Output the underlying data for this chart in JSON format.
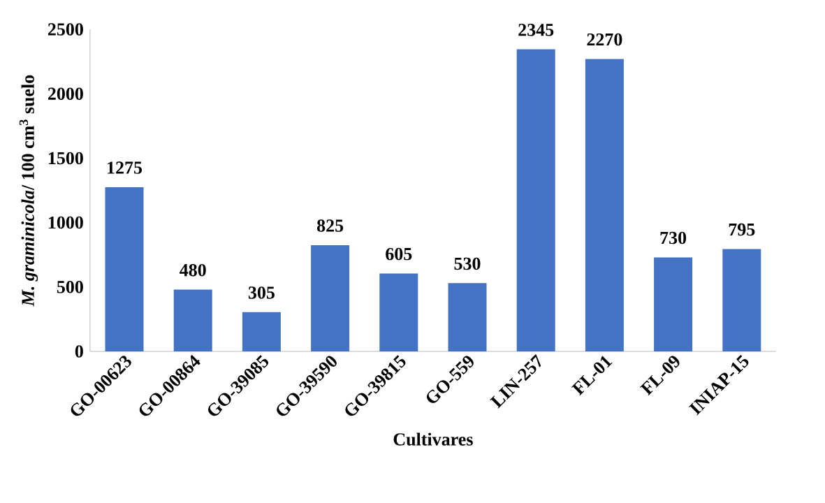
{
  "chart_data": {
    "type": "bar",
    "xlabel": "Cultivares",
    "ylabel": "*M. graminicola*/ 100 cm$^{3}$ suelo",
    "categories": [
      "GO-00623",
      "GO-00864",
      "GO-39085",
      "GO-39590",
      "GO-39815",
      "GO-559",
      "LIN-257",
      "FL-01",
      "FL-09",
      "INIAP-15"
    ],
    "values": [
      1275,
      480,
      305,
      825,
      605,
      530,
      2345,
      2270,
      730,
      795
    ],
    "color": "#4472c4",
    "ylim": [
      0,
      2500
    ],
    "yticks": [
      0,
      500,
      1000,
      1500,
      2000,
      2500
    ],
    "data_labels": true
  }
}
